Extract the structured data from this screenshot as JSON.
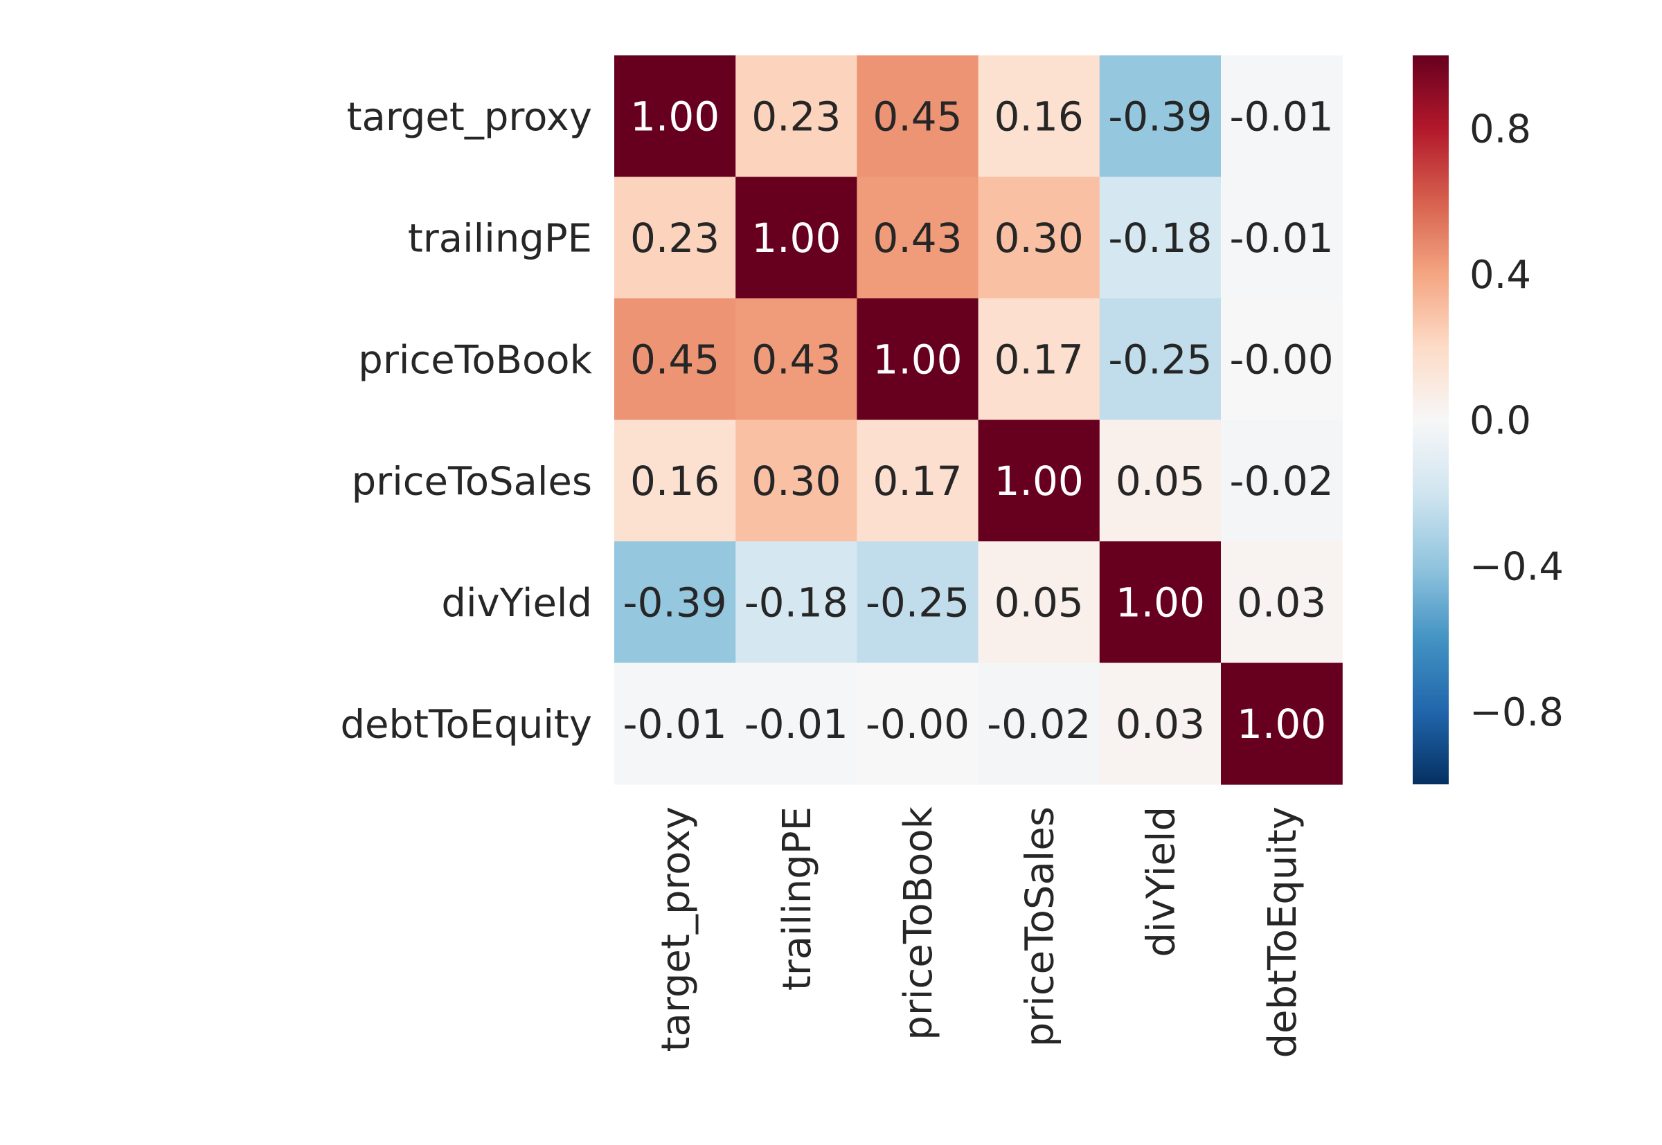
{
  "chart_data": {
    "type": "heatmap",
    "title": "",
    "xlabel": "",
    "ylabel": "",
    "rows": [
      "target_proxy",
      "trailingPE",
      "priceToBook",
      "priceToSales",
      "divYield",
      "debtToEquity"
    ],
    "columns": [
      "target_proxy",
      "trailingPE",
      "priceToBook",
      "priceToSales",
      "divYield",
      "debtToEquity"
    ],
    "values": [
      [
        1.0,
        0.23,
        0.45,
        0.16,
        -0.39,
        -0.01
      ],
      [
        0.23,
        1.0,
        0.43,
        0.3,
        -0.18,
        -0.01
      ],
      [
        0.45,
        0.43,
        1.0,
        0.17,
        -0.25,
        -0.0
      ],
      [
        0.16,
        0.3,
        0.17,
        1.0,
        0.05,
        -0.02
      ],
      [
        -0.39,
        -0.18,
        -0.25,
        0.05,
        1.0,
        0.03
      ],
      [
        -0.01,
        -0.01,
        -0.0,
        -0.02,
        0.03,
        1.0
      ]
    ],
    "cell_labels": [
      [
        "1.00",
        "0.23",
        "0.45",
        "0.16",
        "-0.39",
        "-0.01"
      ],
      [
        "0.23",
        "1.00",
        "0.43",
        "0.30",
        "-0.18",
        "-0.01"
      ],
      [
        "0.45",
        "0.43",
        "1.00",
        "0.17",
        "-0.25",
        "-0.00"
      ],
      [
        "0.16",
        "0.30",
        "0.17",
        "1.00",
        "0.05",
        "-0.02"
      ],
      [
        "-0.39",
        "-0.18",
        "-0.25",
        "0.05",
        "1.00",
        "0.03"
      ],
      [
        "-0.01",
        "-0.01",
        "-0.00",
        "-0.02",
        "0.03",
        "1.00"
      ]
    ],
    "colorbar": {
      "colormap": "RdBu_r",
      "vmin": -1.0,
      "vmax": 1.0,
      "ticks": [
        0.8,
        0.4,
        0.0,
        -0.4,
        -0.8
      ],
      "tick_labels": [
        "0.8",
        "0.4",
        "0.0",
        "−0.4",
        "−0.8"
      ]
    },
    "grid": false,
    "legend": "right"
  }
}
